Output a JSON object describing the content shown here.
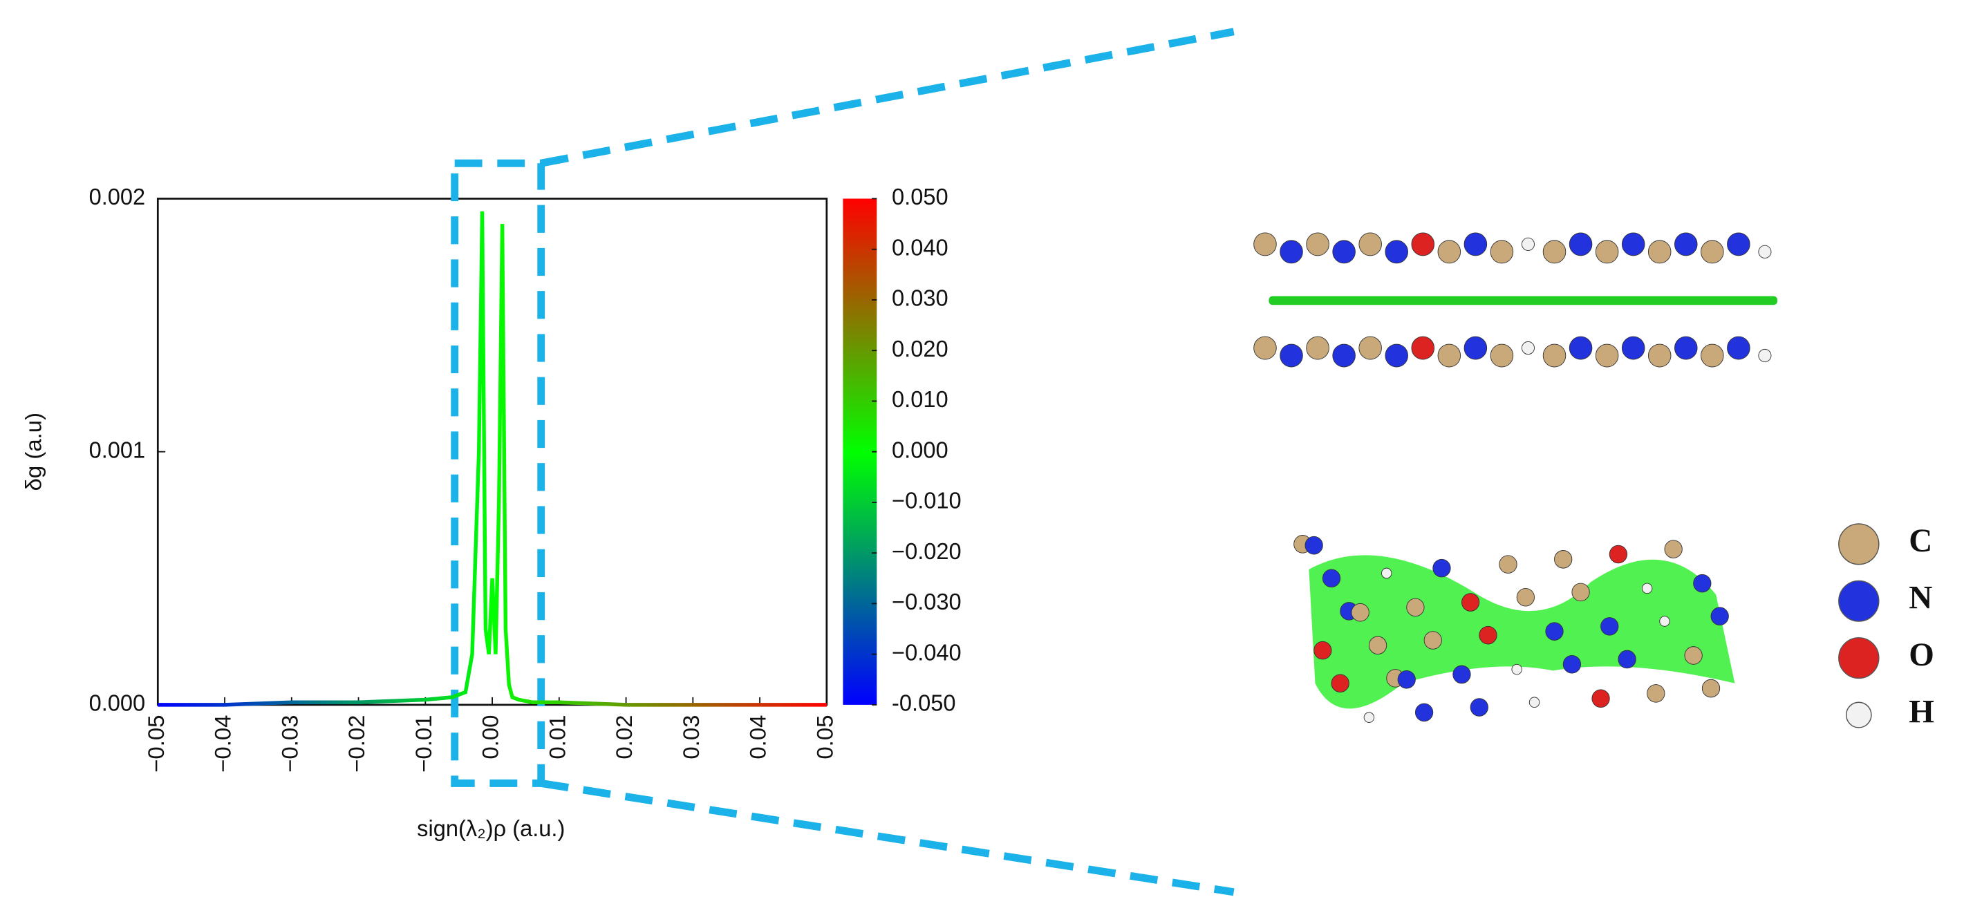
{
  "chart_data": {
    "type": "line",
    "x_label": "sign(λ₂)ρ (a.u.)",
    "y_label": "δg (a.u)",
    "x": [
      -0.05,
      -0.04,
      -0.03,
      -0.02,
      -0.01,
      -0.006,
      -0.004,
      -0.003,
      -0.002,
      -0.0015,
      -0.001,
      -0.0005,
      0,
      0.0005,
      0.001,
      0.0015,
      0.002,
      0.0025,
      0.003,
      0.004,
      0.006,
      0.01,
      0.02,
      0.03,
      0.04,
      0.05
    ],
    "values": [
      0,
      0,
      1e-05,
      1e-05,
      2e-05,
      3e-05,
      5e-05,
      0.0002,
      0.001,
      0.00195,
      0.0003,
      0.0002,
      0.0005,
      0.0002,
      0.0008,
      0.0019,
      0.0003,
      8e-05,
      3e-05,
      2e-05,
      1e-05,
      1e-05,
      0,
      0,
      0,
      0
    ],
    "colormap": [
      "#0000ff",
      "#00ff00",
      "#ff0000"
    ],
    "xlim": [
      -0.05,
      0.05
    ],
    "xticks": [
      {
        "value": -0.05,
        "label": "−0.05"
      },
      {
        "value": -0.04,
        "label": "−0.04"
      },
      {
        "value": -0.03,
        "label": "−0.03"
      },
      {
        "value": -0.02,
        "label": "−0.02"
      },
      {
        "value": -0.01,
        "label": "−0.01"
      },
      {
        "value": 0,
        "label": "0.00"
      },
      {
        "value": 0.01,
        "label": "0.01"
      },
      {
        "value": 0.02,
        "label": "0.02"
      },
      {
        "value": 0.03,
        "label": "0.03"
      },
      {
        "value": 0.04,
        "label": "0.04"
      },
      {
        "value": 0.05,
        "label": "0.05"
      }
    ],
    "ylim": [
      0,
      0.002
    ],
    "yticks": [
      {
        "value": 0,
        "label": "0.000"
      },
      {
        "value": 0.001,
        "label": "0.001"
      },
      {
        "value": 0.002,
        "label": "0.002"
      }
    ],
    "clim": [
      -0.05,
      0.05
    ],
    "cticks": [
      {
        "value": 0.05,
        "label": "0.050"
      },
      {
        "value": 0.04,
        "label": "0.040"
      },
      {
        "value": 0.03,
        "label": "0.030"
      },
      {
        "value": 0.02,
        "label": "0.020"
      },
      {
        "value": 0.01,
        "label": "0.010"
      },
      {
        "value": 0,
        "label": "0.000"
      },
      {
        "value": -0.01,
        "label": "−0.010"
      },
      {
        "value": -0.02,
        "label": "−0.020"
      },
      {
        "value": -0.03,
        "label": "−0.030"
      },
      {
        "value": -0.04,
        "label": "−0.040"
      },
      {
        "value": -0.05,
        "label": "-0.050"
      }
    ],
    "atoms": [
      {
        "label": "C",
        "color": "#c9a97a"
      },
      {
        "label": "N",
        "color": "#2233dd"
      },
      {
        "label": "O",
        "color": "#dd2222"
      },
      {
        "label": "H",
        "color": "#f2f2f2"
      }
    ]
  }
}
